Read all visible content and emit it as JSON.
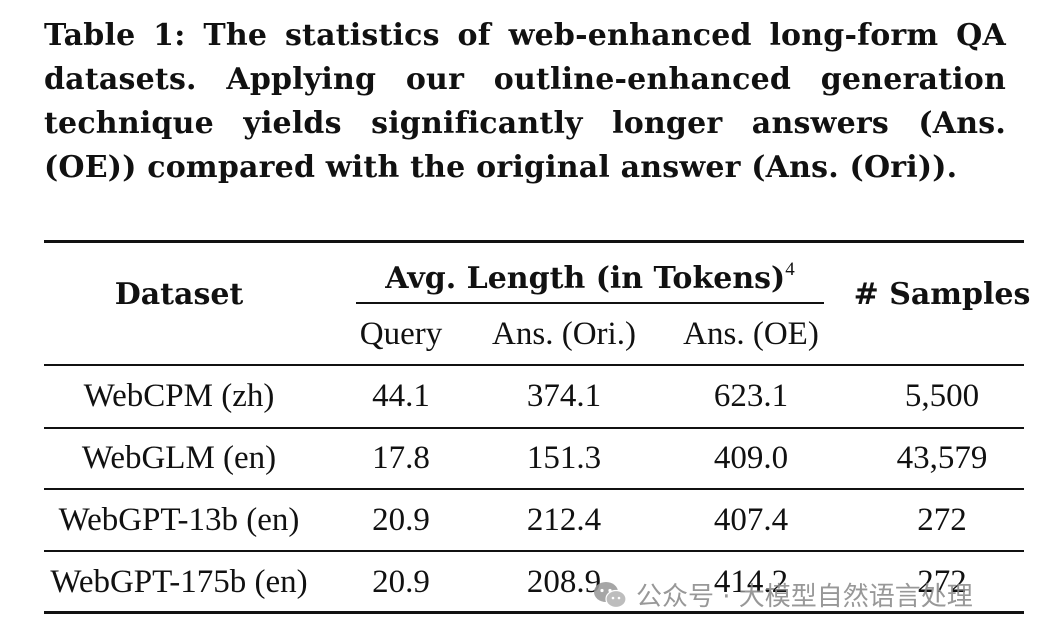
{
  "caption": "Table 1: The statistics of web-enhanced long-form QA datasets. Applying our outline-enhanced generation technique yields significantly longer answers (Ans. (OE)) compared with the original answer (Ans. (Ori)).",
  "table": {
    "header": {
      "dataset": "Dataset",
      "avg_length": "Avg. Length (in Tokens)",
      "avg_length_footnote": "4",
      "samples": "# Samples",
      "sub": [
        "Query",
        "Ans. (Ori.)",
        "Ans. (OE)"
      ]
    },
    "rows": [
      {
        "dataset": "WebCPM (zh)",
        "query": "44.1",
        "ans_ori": "374.1",
        "ans_oe": "623.1",
        "samples": "5,500"
      },
      {
        "dataset": "WebGLM (en)",
        "query": "17.8",
        "ans_ori": "151.3",
        "ans_oe": "409.0",
        "samples": "43,579"
      },
      {
        "dataset": "WebGPT-13b (en)",
        "query": "20.9",
        "ans_ori": "212.4",
        "ans_oe": "407.4",
        "samples": "272"
      },
      {
        "dataset": "WebGPT-175b (en)",
        "query": "20.9",
        "ans_ori": "208.9",
        "ans_oe": "414.2",
        "samples": "272"
      }
    ]
  },
  "watermark": {
    "text": "公众号 · 大模型自然语言处理",
    "icon": "wechat-logo-icon"
  }
}
